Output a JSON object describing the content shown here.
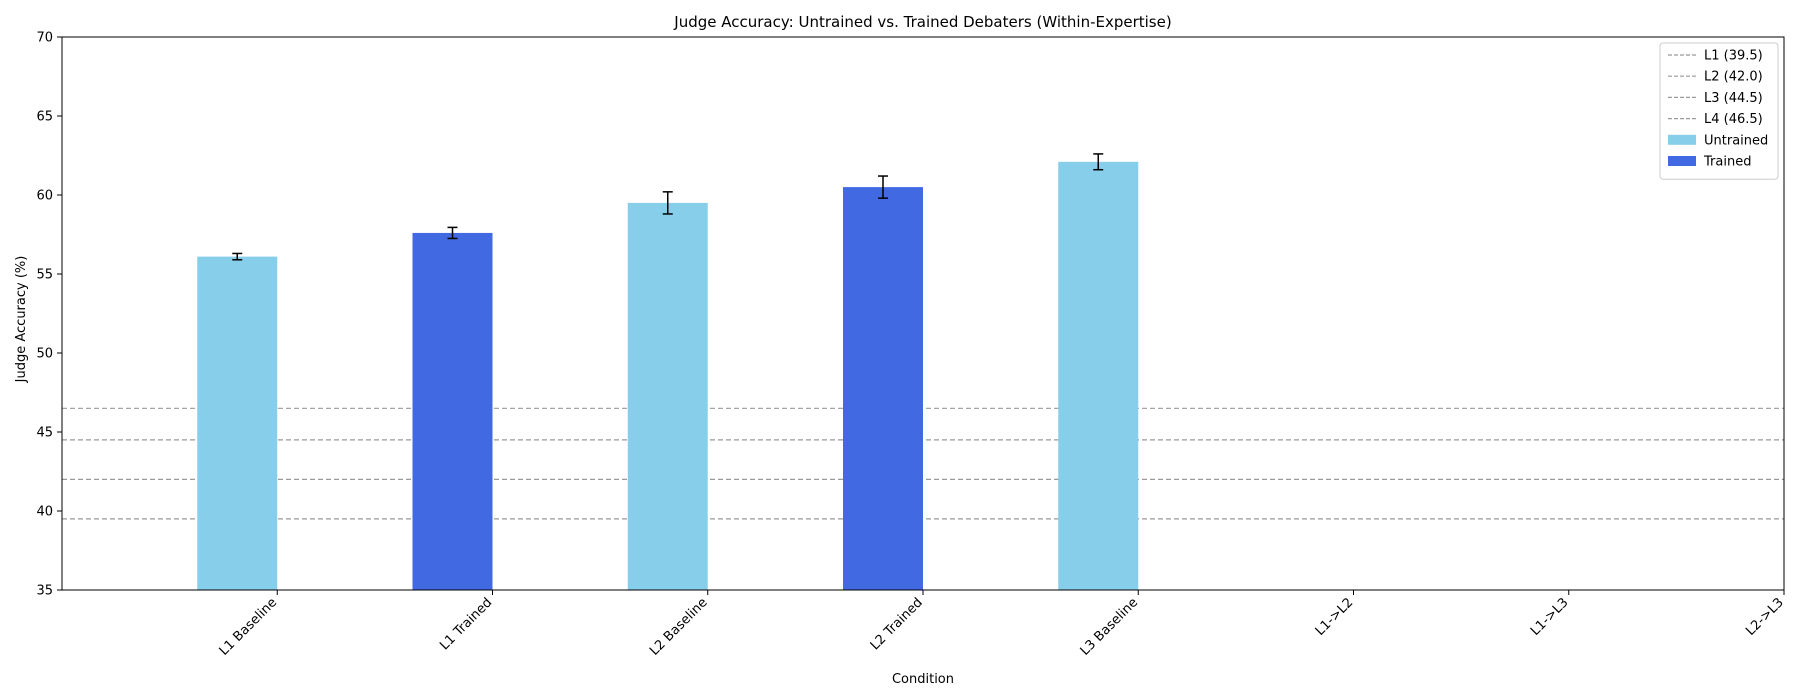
{
  "chart_data": {
    "type": "bar",
    "title": "Judge Accuracy: Untrained vs. Trained Debaters (Within-Expertise)",
    "xlabel": "Condition",
    "ylabel": "Judge Accuracy (%)",
    "ylim": [
      35,
      70
    ],
    "yticks": [
      35,
      40,
      45,
      50,
      55,
      60,
      65,
      70
    ],
    "categories": [
      "L1 Baseline",
      "L1 Trained",
      "L2 Baseline",
      "L2 Trained",
      "L3 Baseline",
      "L1->L2",
      "L1->L3",
      "L2->L3"
    ],
    "series": [
      {
        "name": "Untrained",
        "color": "#87CEEB",
        "points": [
          {
            "category": "L1 Baseline",
            "value": 56.1,
            "error": 0.2
          },
          {
            "category": "L2 Baseline",
            "value": 59.5,
            "error": 0.7
          },
          {
            "category": "L3 Baseline",
            "value": 62.1,
            "error": 0.5
          }
        ]
      },
      {
        "name": "Trained",
        "color": "#4169E1",
        "points": [
          {
            "category": "L1 Trained",
            "value": 57.6,
            "error": 0.35
          },
          {
            "category": "L2 Trained",
            "value": 60.5,
            "error": 0.7
          }
        ]
      }
    ],
    "reference_lines": [
      {
        "name": "L1 (39.5)",
        "value": 39.5
      },
      {
        "name": "L2 (42.0)",
        "value": 42.0
      },
      {
        "name": "L3 (44.5)",
        "value": 44.5
      },
      {
        "name": "L4 (46.5)",
        "value": 46.5
      }
    ],
    "legend_position": "top-right",
    "grid": false
  }
}
